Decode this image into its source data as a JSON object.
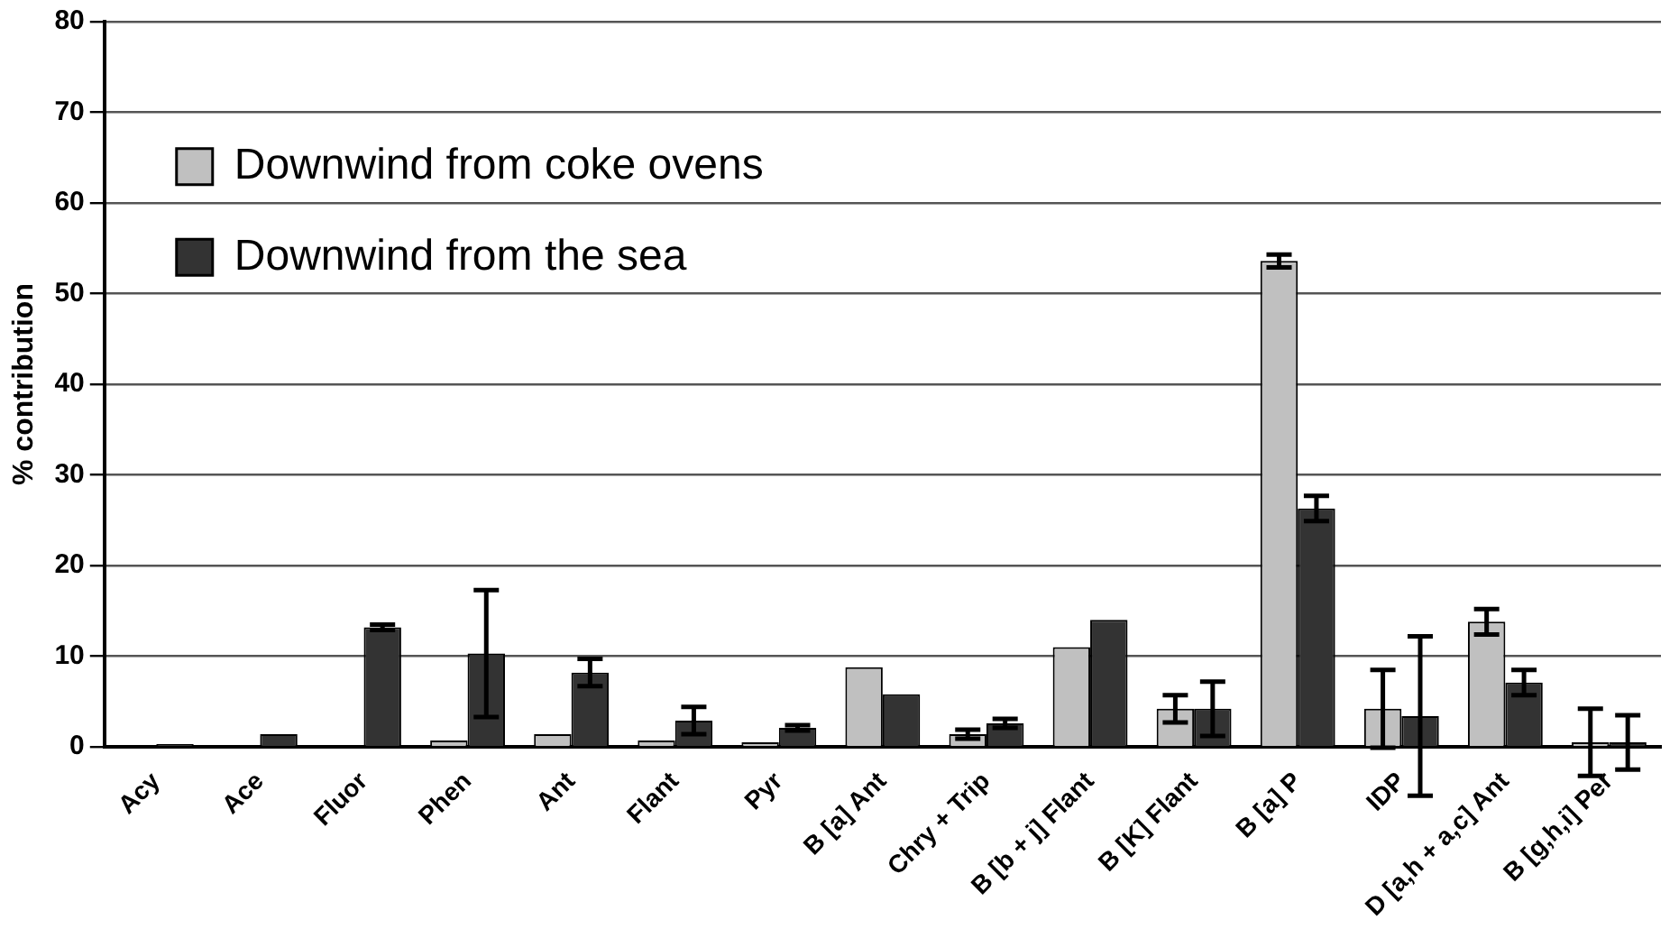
{
  "chart_data": {
    "type": "bar",
    "ylabel": "% contribution",
    "categories": [
      "Acy",
      "Ace",
      "Fluor",
      "Phen",
      "Ant",
      "Flant",
      "Pyr",
      "B [a] Ant",
      "Chry + Trip",
      "B [b + j] Flant",
      "B [K] Flant",
      "B [a] P",
      "IDP",
      "D [a,h + a,c] Ant",
      "B [g,h,i] Per"
    ],
    "series": [
      {
        "name": "Downwind from coke ovens",
        "color": "#c0c0c0",
        "values": [
          null,
          null,
          null,
          0.7,
          1.4,
          0.7,
          0.5,
          8.8,
          1.4,
          11,
          4.2,
          53.6,
          4.2,
          13.8,
          0.5
        ],
        "errors": [
          null,
          null,
          null,
          null,
          null,
          null,
          null,
          null,
          0.5,
          null,
          1.5,
          0.7,
          4.3,
          1.4,
          3.7
        ]
      },
      {
        "name": "Downwind from the sea",
        "color": "#333333",
        "values": [
          0.3,
          1.4,
          13.2,
          10.3,
          8.2,
          2.9,
          2.1,
          5.8,
          2.6,
          14,
          4.2,
          26.3,
          3.4,
          7.1,
          0.5
        ],
        "errors": [
          null,
          null,
          0.3,
          7,
          1.5,
          1.5,
          0.3,
          null,
          0.5,
          null,
          3,
          1.4,
          8.8,
          1.4,
          3
        ]
      }
    ],
    "ylim": [
      0,
      80
    ],
    "yticks": [
      0,
      10,
      20,
      30,
      40,
      50,
      60,
      70,
      80
    ],
    "grid": "y",
    "legend": "top left"
  }
}
